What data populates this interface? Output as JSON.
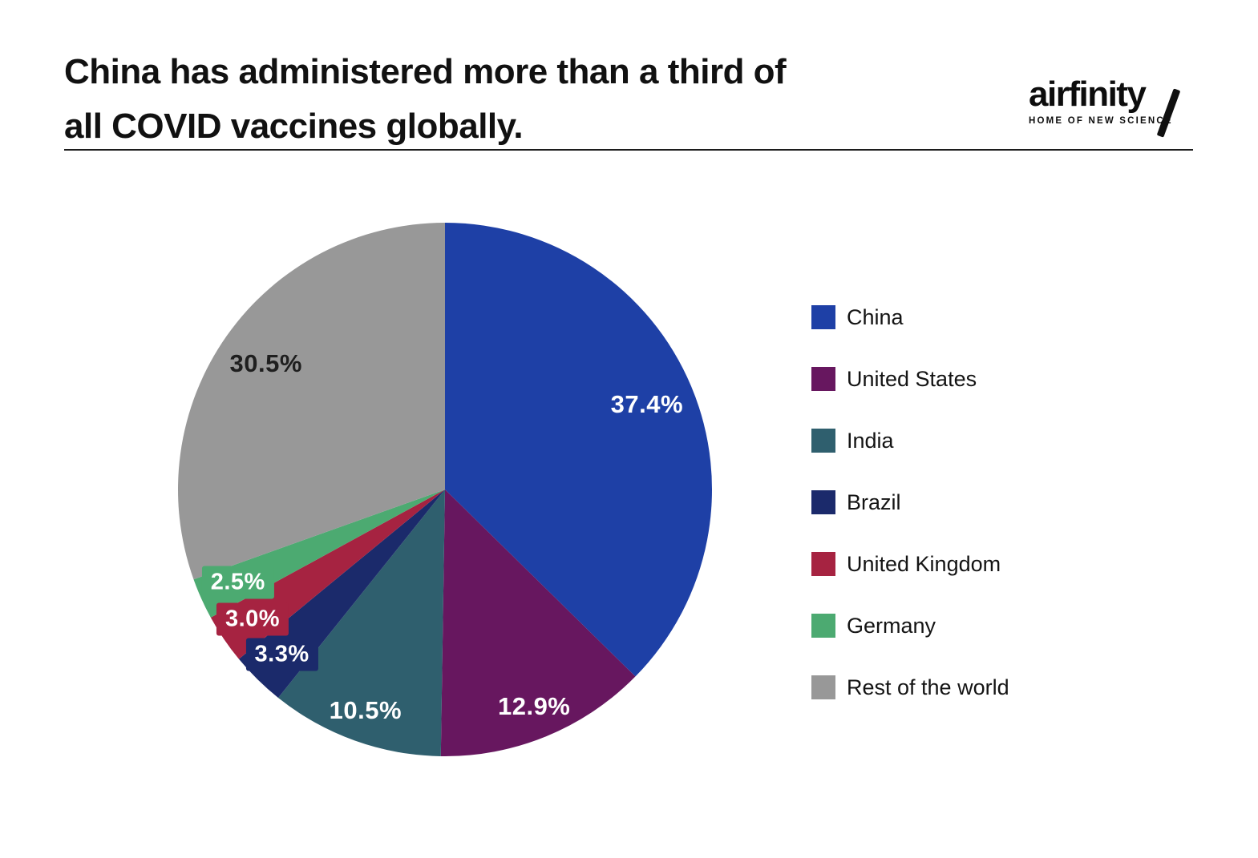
{
  "header": {
    "title_line1": "China has administered more than a third of",
    "title_line2": "all COVID vaccines globally.",
    "logo": {
      "name": "airfinity",
      "tagline": "HOME OF NEW SCIENCE"
    }
  },
  "chart_data": {
    "type": "pie",
    "title": "China has administered more than a third of all COVID vaccines globally.",
    "start_angle_deg": 0,
    "direction": "clockwise",
    "legend_position": "right",
    "grid": false,
    "slices": [
      {
        "label": "China",
        "value": 37.4,
        "display": "37.4%",
        "color": "#1e40a6",
        "label_color": "#ffffff",
        "label_radius": 0.82,
        "boxed": false
      },
      {
        "label": "United States",
        "value": 12.9,
        "display": "12.9%",
        "color": "#67175f",
        "label_color": "#ffffff",
        "label_radius": 0.88,
        "boxed": false
      },
      {
        "label": "India",
        "value": 10.5,
        "display": "10.5%",
        "color": "#2f5f6e",
        "label_color": "#ffffff",
        "label_radius": 0.88,
        "boxed": false
      },
      {
        "label": "Brazil",
        "value": 3.3,
        "display": "3.3%",
        "color": "#1b2a6b",
        "label_color": "#ffffff",
        "label_radius": 0.87,
        "boxed": true
      },
      {
        "label": "United Kingdom",
        "value": 3.0,
        "display": "3.0%",
        "color": "#a62341",
        "label_color": "#ffffff",
        "label_radius": 0.87,
        "boxed": true
      },
      {
        "label": "Germany",
        "value": 2.5,
        "display": "2.5%",
        "color": "#4caa71",
        "label_color": "#ffffff",
        "label_radius": 0.85,
        "boxed": true
      },
      {
        "label": "Rest of the world",
        "value": 30.5,
        "display": "30.5%",
        "color": "#989898",
        "label_color": "#1f1f1f",
        "label_radius": 0.82,
        "boxed": false
      }
    ]
  }
}
